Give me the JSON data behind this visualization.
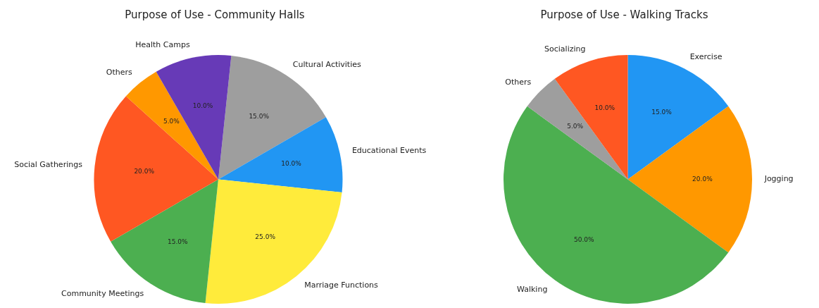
{
  "chart_data": [
    {
      "type": "pie",
      "title": "Purpose of Use - Community Halls",
      "categories": [
        "Cultural Activities",
        "Educational Events",
        "Marriage Functions",
        "Community Meetings",
        "Social Gatherings",
        "Others",
        "Health Camps"
      ],
      "values": [
        15,
        10,
        25,
        15,
        20,
        5,
        10
      ],
      "value_labels": [
        "15.0%",
        "10.0%",
        "25.0%",
        "15.0%",
        "20.0%",
        "5.0%",
        "10.0%"
      ],
      "colors": [
        "#9e9e9e",
        "#2196f3",
        "#ffeb3b",
        "#4caf50",
        "#ff5722",
        "#ff9800",
        "#673ab7"
      ],
      "legend": false
    },
    {
      "type": "pie",
      "title": "Purpose of Use - Walking Tracks",
      "categories": [
        "Exercise",
        "Jogging",
        "Walking",
        "Others",
        "Socializing"
      ],
      "values": [
        15,
        20,
        50,
        5,
        10
      ],
      "value_labels": [
        "15.0%",
        "20.0%",
        "50.0%",
        "5.0%",
        "10.0%"
      ],
      "colors": [
        "#2196f3",
        "#ff9800",
        "#4caf50",
        "#9e9e9e",
        "#ff5722"
      ],
      "legend": false
    }
  ]
}
